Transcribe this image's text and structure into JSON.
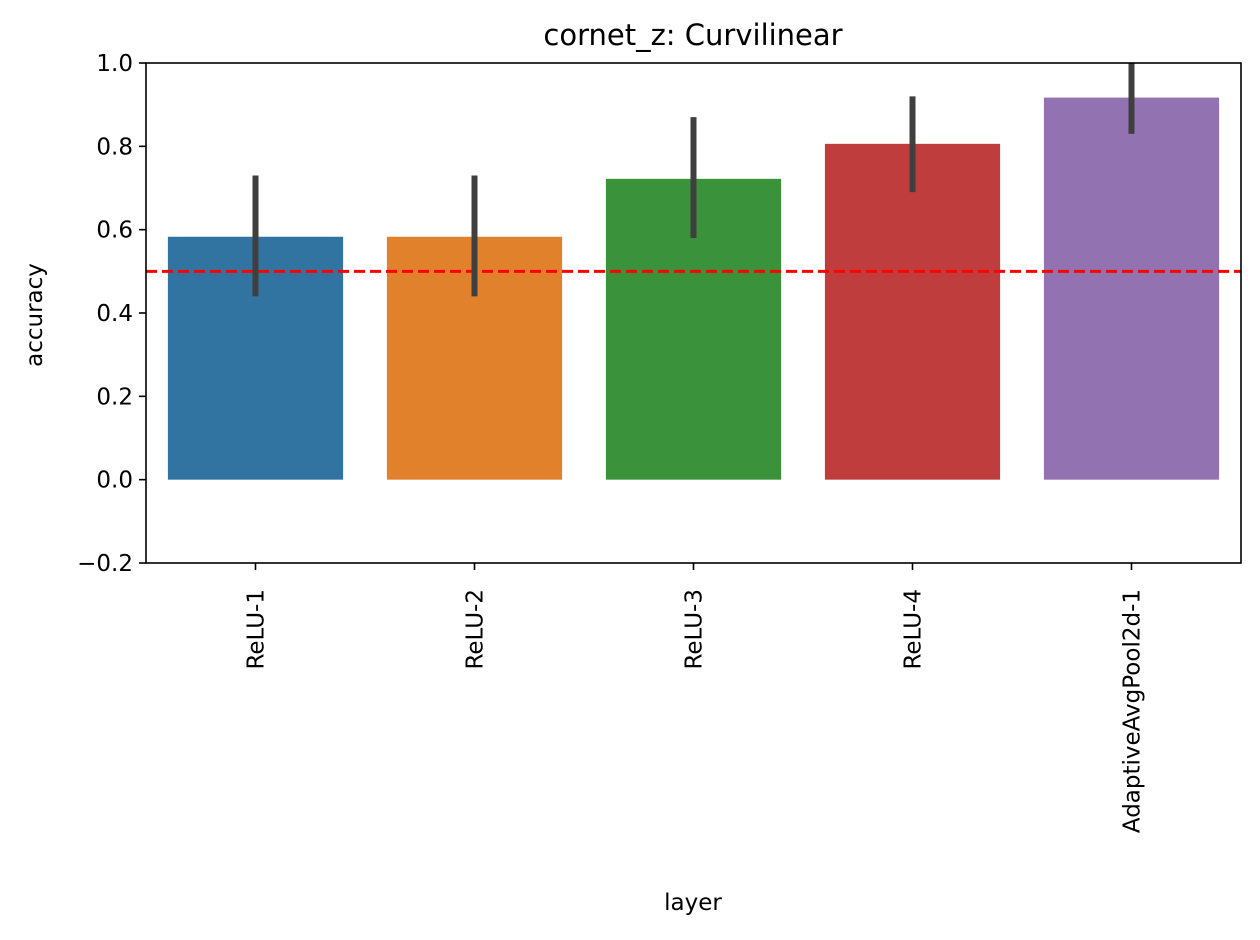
{
  "chart_data": {
    "type": "bar",
    "title": "cornet_z: Curvilinear",
    "xlabel": "layer",
    "ylabel": "accuracy",
    "categories": [
      "ReLU-1",
      "ReLU-2",
      "ReLU-3",
      "ReLU-4",
      "AdaptiveAvgPool2d-1"
    ],
    "values": [
      0.583,
      0.583,
      0.722,
      0.806,
      0.917
    ],
    "error_low": [
      0.44,
      0.44,
      0.58,
      0.69,
      0.83
    ],
    "error_high": [
      0.73,
      0.73,
      0.87,
      0.92,
      1.0
    ],
    "colors": [
      "#3274a1",
      "#e1812c",
      "#3a923a",
      "#c03d3e",
      "#9372b2"
    ],
    "error_color": "#3f3f3f",
    "ylim": [
      -0.2,
      1.0
    ],
    "yticks": [
      -0.2,
      0.0,
      0.2,
      0.4,
      0.6,
      0.8,
      1.0
    ],
    "ytick_labels": [
      "−0.2",
      "0.0",
      "0.2",
      "0.4",
      "0.6",
      "0.8",
      "1.0"
    ],
    "reference_line": {
      "value": 0.5,
      "color": "#ff0000",
      "style": "dashed"
    },
    "grid": false,
    "legend": "none"
  }
}
